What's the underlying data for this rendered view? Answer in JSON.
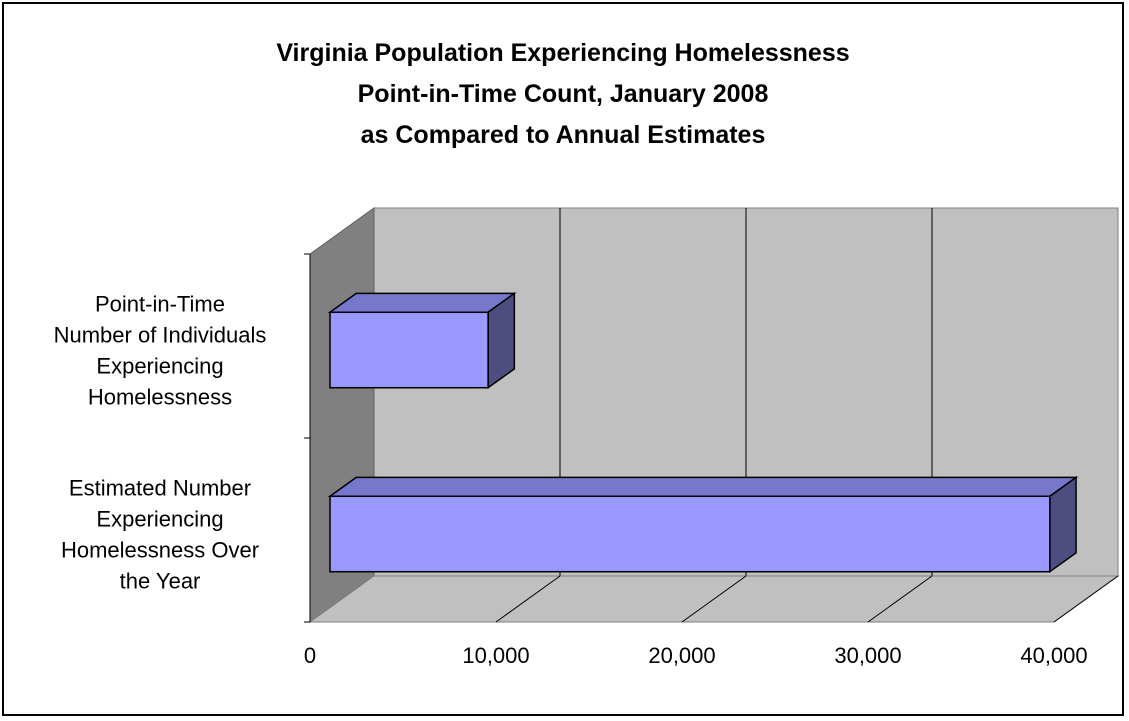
{
  "chart_data": {
    "type": "bar",
    "orientation": "horizontal",
    "three_d": true,
    "title": [
      "Virginia Population Experiencing Homelessness",
      "Point-in-Time Count, January 2008",
      "as Compared to Annual Estimates"
    ],
    "categories": [
      [
        "Point-in-Time",
        "Number of Individuals",
        "Experiencing",
        "Homelessness"
      ],
      [
        "Estimated Number",
        "Experiencing",
        "Homelessness Over",
        "the Year"
      ]
    ],
    "values": [
      8500,
      38700
    ],
    "xlim": [
      0,
      40000
    ],
    "x_ticks": [
      0,
      10000,
      20000,
      30000,
      40000
    ],
    "x_tick_labels": [
      "0",
      "10,000",
      "20,000",
      "30,000",
      "40,000"
    ],
    "xlabel": "",
    "ylabel": "",
    "grid": true,
    "legend": "none",
    "colors": {
      "bar_front": "#9999ff",
      "bar_top": "#7777cc",
      "bar_side": "#4d4d80",
      "back_wall": "#c0c0c0",
      "side_wall": "#808080",
      "floor": "#c0c0c0"
    }
  }
}
